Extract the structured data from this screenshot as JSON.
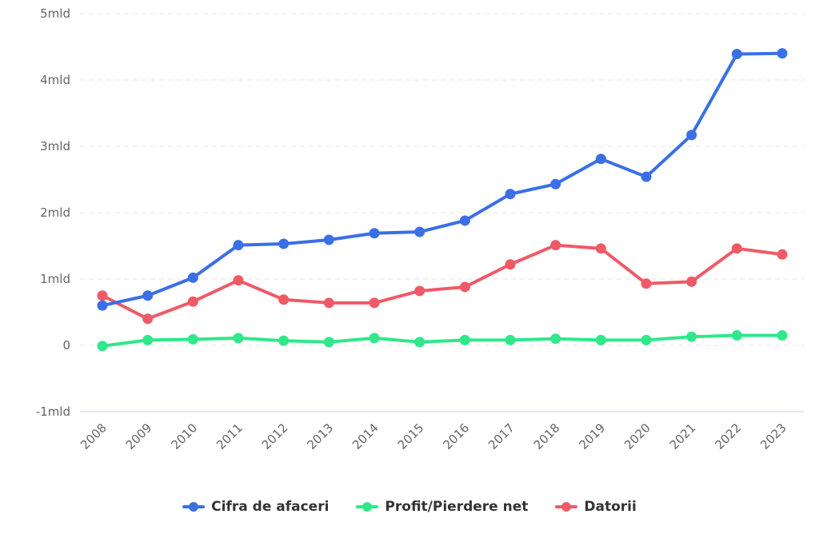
{
  "chart_data": {
    "type": "line",
    "title": "",
    "xlabel": "",
    "ylabel": "",
    "ylim": [
      -1,
      5
    ],
    "yticks": [
      -1,
      0,
      1,
      2,
      3,
      4,
      5
    ],
    "ytick_labels": [
      "-1mld",
      "0",
      "1mld",
      "2mld",
      "3mld",
      "4mld",
      "5mld"
    ],
    "grid": true,
    "legend_position": "bottom",
    "x": [
      "2008",
      "2009",
      "2010",
      "2011",
      "2012",
      "2013",
      "2014",
      "2015",
      "2016",
      "2017",
      "2018",
      "2019",
      "2020",
      "2021",
      "2022",
      "2023"
    ],
    "series": [
      {
        "name": "Cifra de afaceri",
        "color": "#3a6fe6",
        "values": [
          0.6,
          0.75,
          1.02,
          1.51,
          1.53,
          1.59,
          1.69,
          1.71,
          1.88,
          2.28,
          2.43,
          2.81,
          2.54,
          3.17,
          4.39,
          4.4
        ]
      },
      {
        "name": "Profit/Pierdere net",
        "color": "#2ee889",
        "values": [
          -0.01,
          0.08,
          0.09,
          0.11,
          0.07,
          0.05,
          0.11,
          0.05,
          0.08,
          0.08,
          0.1,
          0.08,
          0.08,
          0.13,
          0.15,
          0.15
        ]
      },
      {
        "name": "Datorii",
        "color": "#ef5a66",
        "values": [
          0.75,
          0.4,
          0.66,
          0.98,
          0.69,
          0.64,
          0.64,
          0.82,
          0.88,
          1.22,
          1.51,
          1.46,
          0.93,
          0.96,
          1.46,
          1.37
        ]
      }
    ]
  }
}
